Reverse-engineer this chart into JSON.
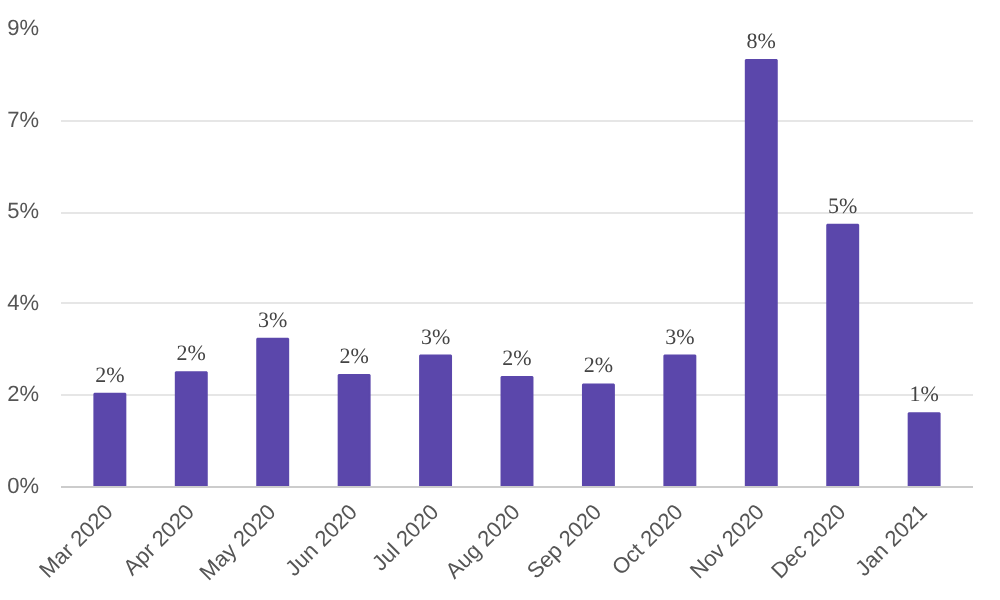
{
  "chart_data": {
    "type": "bar",
    "categories": [
      "Mar 2020",
      "Apr 2020",
      "May 2020",
      "Jun 2020",
      "Jul 2020",
      "Aug 2020",
      "Sep 2020",
      "Oct 2020",
      "Nov 2020",
      "Dec 2020",
      "Jan 2021"
    ],
    "values": [
      1.78,
      2.19,
      2.83,
      2.14,
      2.51,
      2.1,
      1.96,
      2.51,
      8.16,
      5.01,
      1.41
    ],
    "value_labels": [
      "2%",
      "2%",
      "3%",
      "2%",
      "3%",
      "2%",
      "2%",
      "3%",
      "8%",
      "5%",
      "1%"
    ],
    "color": "#5b47ab",
    "ylim": [
      0,
      8.75
    ],
    "yticks": [
      {
        "value": 0,
        "label": "0%"
      },
      {
        "value": 1.75,
        "label": "2%"
      },
      {
        "value": 3.5,
        "label": "4%"
      },
      {
        "value": 5.25,
        "label": "5%"
      },
      {
        "value": 7,
        "label": "7%"
      },
      {
        "value": 8.75,
        "label": "9%"
      }
    ],
    "grid": "y"
  }
}
